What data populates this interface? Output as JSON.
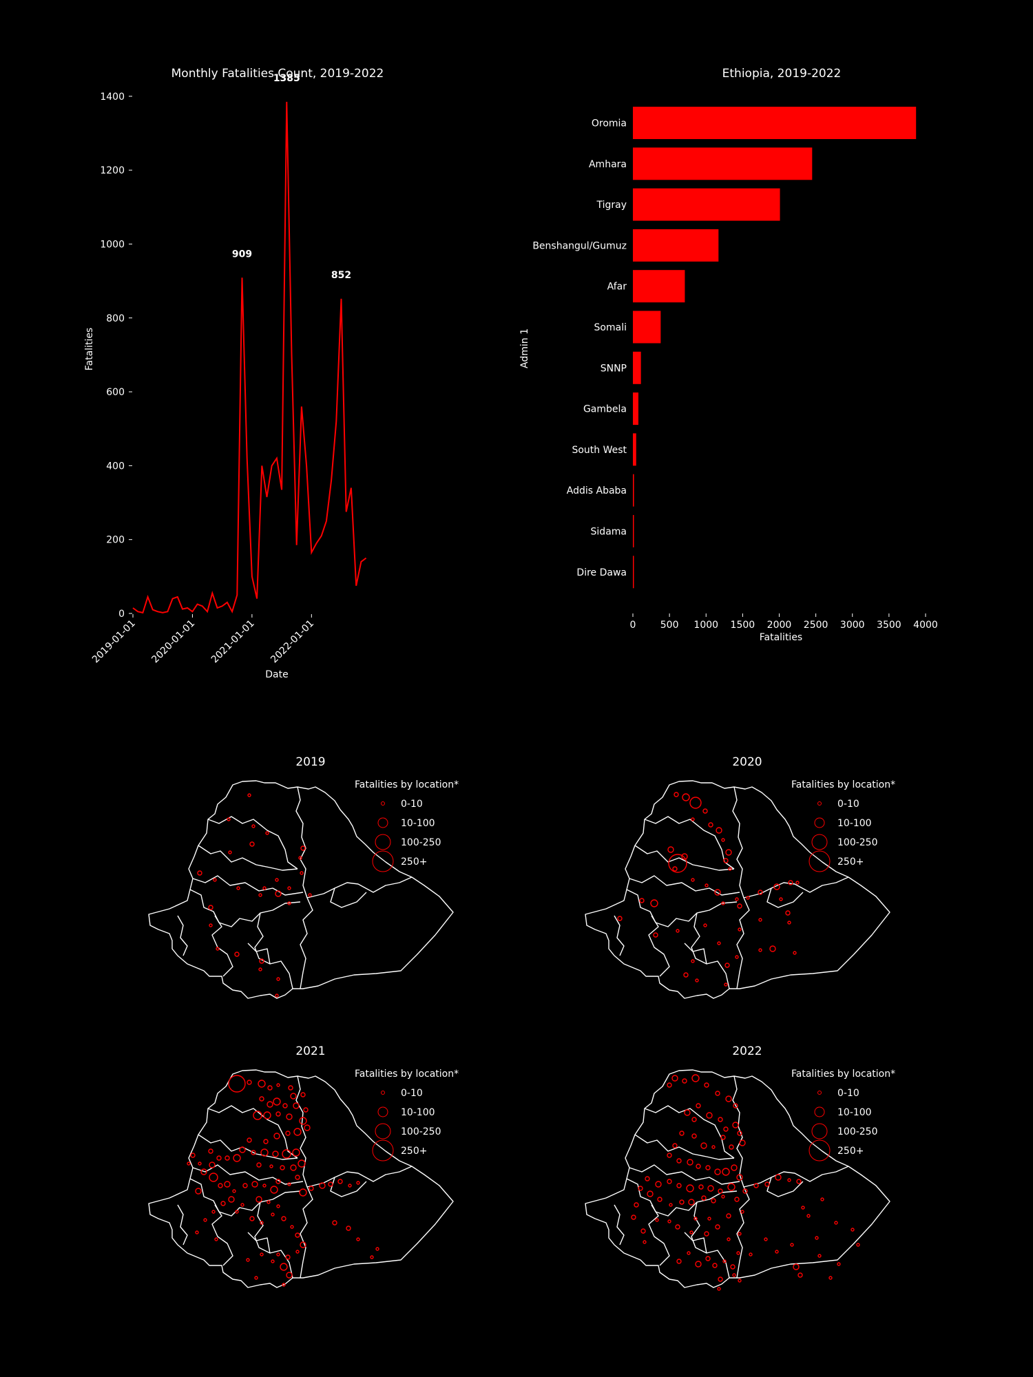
{
  "colors": {
    "background": "#000000",
    "foreground": "#ffffff",
    "accent": "#ff0000"
  },
  "chart_data": [
    {
      "type": "line",
      "title": "Monthly Fatalities Count, 2019-2022",
      "xlabel": "Date",
      "ylabel": "Fatalities",
      "ylim": [
        0,
        1450
      ],
      "yticks": [
        0,
        200,
        400,
        600,
        800,
        1000,
        1200,
        1400
      ],
      "xticks": [
        "2019-01-01",
        "2020-01-01",
        "2021-01-01",
        "2022-01-01"
      ],
      "x": [
        "2019-01",
        "2019-02",
        "2019-03",
        "2019-04",
        "2019-05",
        "2019-06",
        "2019-07",
        "2019-08",
        "2019-09",
        "2019-10",
        "2019-11",
        "2019-12",
        "2020-01",
        "2020-02",
        "2020-03",
        "2020-04",
        "2020-05",
        "2020-06",
        "2020-07",
        "2020-08",
        "2020-09",
        "2020-10",
        "2020-11",
        "2020-12",
        "2021-01",
        "2021-02",
        "2021-03",
        "2021-04",
        "2021-05",
        "2021-06",
        "2021-07",
        "2021-08",
        "2021-09",
        "2021-10",
        "2021-11",
        "2021-12",
        "2022-01",
        "2022-02",
        "2022-03",
        "2022-04",
        "2022-05",
        "2022-06",
        "2022-07",
        "2022-08",
        "2022-09",
        "2022-10",
        "2022-11",
        "2022-12"
      ],
      "values": [
        15,
        5,
        2,
        45,
        10,
        5,
        2,
        5,
        40,
        45,
        12,
        15,
        5,
        25,
        20,
        5,
        55,
        15,
        20,
        30,
        5,
        50,
        909,
        420,
        100,
        40,
        400,
        315,
        400,
        420,
        335,
        1385,
        700,
        185,
        560,
        400,
        165,
        190,
        210,
        250,
        360,
        520,
        852,
        275,
        340,
        75,
        140,
        150
      ],
      "annotations": [
        {
          "label": "909",
          "x": "2020-11",
          "y": 909
        },
        {
          "label": "1385",
          "x": "2021-08",
          "y": 1385
        },
        {
          "label": "852",
          "x": "2022-07",
          "y": 852
        }
      ]
    },
    {
      "type": "bar",
      "orientation": "horizontal",
      "title": "Ethiopia, 2019-2022",
      "xlabel": "Fatalities",
      "ylabel": "Admin 1",
      "xlim": [
        0,
        4000
      ],
      "xticks": [
        0,
        500,
        1000,
        1500,
        2000,
        2500,
        3000,
        3500,
        4000
      ],
      "categories": [
        "Oromia",
        "Amhara",
        "Tigray",
        "Benshangul/Gumuz",
        "Afar",
        "Somali",
        "SNNP",
        "Gambela",
        "South West",
        "Addis Ababa",
        "Sidama",
        "Dire Dawa"
      ],
      "values": [
        3870,
        2450,
        2010,
        1170,
        710,
        380,
        110,
        75,
        45,
        15,
        12,
        8
      ]
    }
  ],
  "maps": [
    {
      "year": "2019",
      "title": "2019",
      "legend_title": "Fatalities by location*",
      "legend": [
        "0-10",
        "10-100",
        "100-250",
        "250+"
      ]
    },
    {
      "year": "2020",
      "title": "2020",
      "legend_title": "Fatalities by location*",
      "legend": [
        "0-10",
        "10-100",
        "100-250",
        "250+"
      ]
    },
    {
      "year": "2021",
      "title": "2021",
      "legend_title": "Fatalities by location*",
      "legend": [
        "0-10",
        "10-100",
        "100-250",
        "250+"
      ]
    },
    {
      "year": "2022",
      "title": "2022",
      "legend_title": "Fatalities by location*",
      "legend": [
        "0-10",
        "10-100",
        "100-250",
        "250+"
      ]
    }
  ]
}
